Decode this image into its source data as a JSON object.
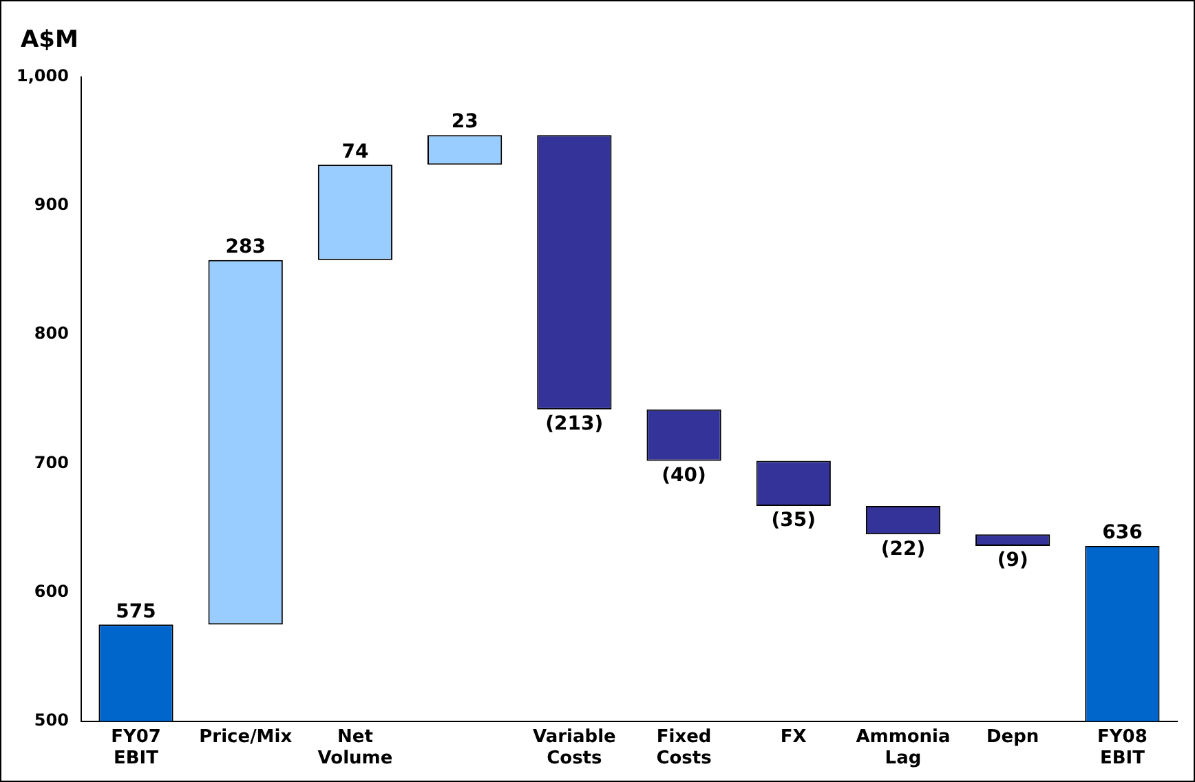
{
  "chart_data": {
    "type": "bar",
    "ylabel": "A$M",
    "categories": [
      "FY07 EBIT",
      "Price/Mix",
      "Net Volume",
      null,
      "Variable Costs",
      "Fixed Costs",
      "FX",
      "Ammonia Lag",
      "Depn",
      "FY08 EBIT"
    ],
    "values": [
      575,
      283,
      74,
      23,
      -213,
      -40,
      -35,
      -22,
      -9,
      636
    ],
    "base": [
      null,
      575,
      858,
      932,
      955,
      742,
      702,
      667,
      645,
      null
    ],
    "colors": [
      "#0066cc",
      "#99ccff",
      "#99ccff",
      "#99ccff",
      "#333399",
      "#333399",
      "#333399",
      "#333399",
      "#333399",
      "#0066cc"
    ],
    "value_labels": [
      "575",
      "283",
      "74",
      "23",
      "(213)",
      "(40)",
      "(35)",
      "(22)",
      "(9)",
      "636"
    ],
    "ylim": [
      500,
      1000
    ],
    "yticks": [
      500,
      600,
      700,
      800,
      900,
      {
        "value": 1000,
        "label": "1,000"
      }
    ],
    "grid": false,
    "legend": false
  }
}
